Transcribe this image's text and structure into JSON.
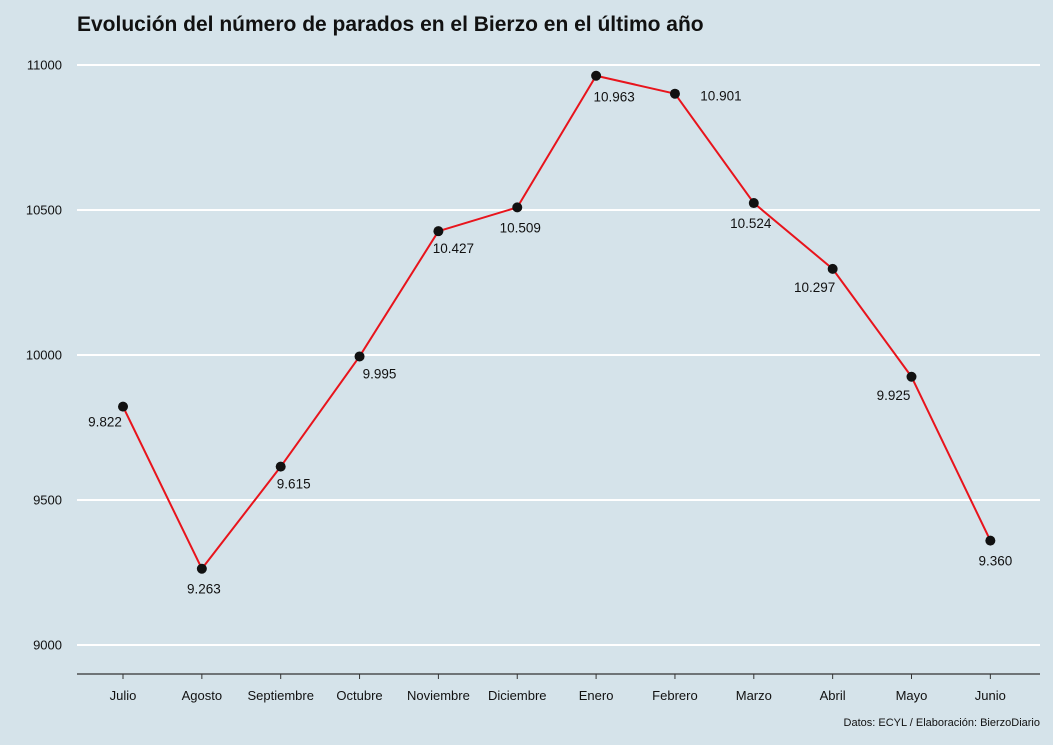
{
  "chart_data": {
    "type": "line",
    "title": "Evolución del número de parados en el Bierzo en el último año",
    "xlabel": "",
    "ylabel": "",
    "categories": [
      "Julio",
      "Agosto",
      "Septiembre",
      "Octubre",
      "Noviembre",
      "Diciembre",
      "Enero",
      "Febrero",
      "Marzo",
      "Abril",
      "Mayo",
      "Junio"
    ],
    "values": [
      9822,
      9263,
      9615,
      9995,
      10427,
      10509,
      10963,
      10901,
      10524,
      10297,
      9925,
      9360
    ],
    "data_labels": [
      "9.822",
      "9.263",
      "9.615",
      "9.995",
      "10.427",
      "10.509",
      "10.963",
      "10.901",
      "10.524",
      "10.297",
      "9.925",
      "9.360"
    ],
    "yticks": [
      9000,
      9500,
      10000,
      10500,
      11000
    ],
    "ytick_labels": [
      "9000",
      "9500",
      "10000",
      "10500",
      "11000"
    ],
    "ylim": [
      8900,
      11040
    ],
    "grid": true,
    "legend": "none",
    "caption": "Datos: ECYL / Elaboración: BierzoDiario",
    "colors": {
      "background": "#d5e3ea",
      "grid": "#ffffff",
      "line": "#e8141c",
      "point": "#111111",
      "axis": "#333333"
    }
  }
}
